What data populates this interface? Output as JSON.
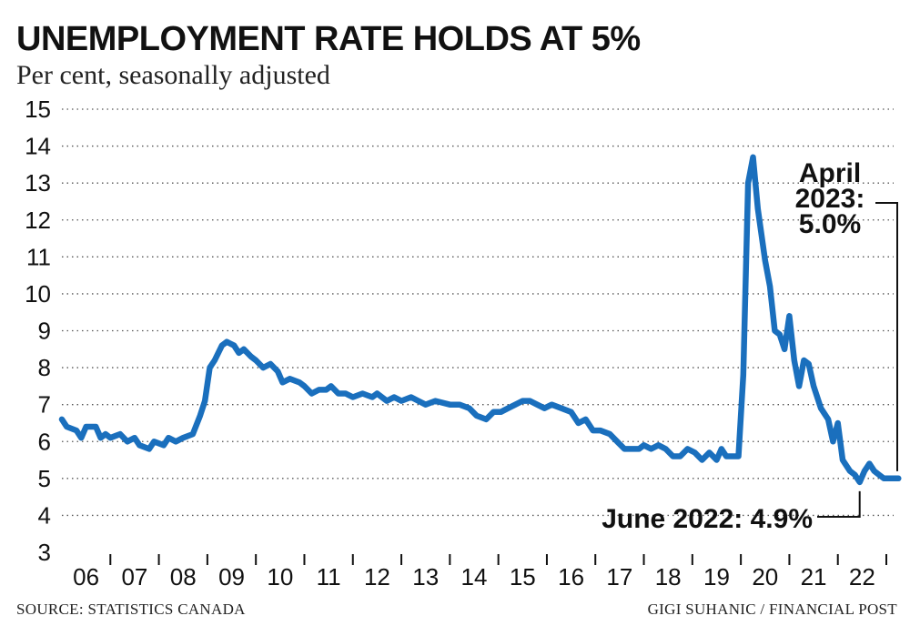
{
  "title": "UNEMPLOYMENT RATE HOLDS AT 5%",
  "subtitle": "Per cent, seasonally adjusted",
  "source_left": "SOURCE: STATISTICS CANADA",
  "source_right": "GIGI SUHANIC / FINANCIAL POST",
  "colors": {
    "line": "#1a6fbd",
    "grid": "#555555",
    "text": "#111111"
  },
  "chart_data": {
    "type": "line",
    "title": "UNEMPLOYMENT RATE HOLDS AT 5%",
    "subtitle": "Per cent, seasonally adjusted",
    "xlabel": "",
    "ylabel": "",
    "ylim": [
      3,
      15
    ],
    "xlim": [
      2006.0,
      2023.3
    ],
    "yticks": [
      3,
      4,
      5,
      6,
      7,
      8,
      9,
      10,
      11,
      12,
      13,
      14,
      15
    ],
    "xtick_labels": [
      "06",
      "07",
      "08",
      "09",
      "10",
      "11",
      "12",
      "13",
      "14",
      "15",
      "16",
      "17",
      "18",
      "19",
      "20",
      "21",
      "22"
    ],
    "grid": "horizontal dotted",
    "series": [
      {
        "name": "Unemployment rate",
        "points": [
          [
            2006.0,
            6.6
          ],
          [
            2006.1,
            6.4
          ],
          [
            2006.3,
            6.3
          ],
          [
            2006.4,
            6.1
          ],
          [
            2006.5,
            6.4
          ],
          [
            2006.7,
            6.4
          ],
          [
            2006.8,
            6.1
          ],
          [
            2006.9,
            6.2
          ],
          [
            2007.0,
            6.1
          ],
          [
            2007.2,
            6.2
          ],
          [
            2007.35,
            6.0
          ],
          [
            2007.5,
            6.1
          ],
          [
            2007.6,
            5.9
          ],
          [
            2007.8,
            5.8
          ],
          [
            2007.9,
            6.0
          ],
          [
            2008.1,
            5.9
          ],
          [
            2008.2,
            6.1
          ],
          [
            2008.35,
            6.0
          ],
          [
            2008.5,
            6.1
          ],
          [
            2008.7,
            6.2
          ],
          [
            2008.85,
            6.7
          ],
          [
            2008.95,
            7.1
          ],
          [
            2009.05,
            8.0
          ],
          [
            2009.15,
            8.2
          ],
          [
            2009.3,
            8.6
          ],
          [
            2009.4,
            8.7
          ],
          [
            2009.55,
            8.6
          ],
          [
            2009.65,
            8.4
          ],
          [
            2009.75,
            8.5
          ],
          [
            2009.9,
            8.3
          ],
          [
            2010.0,
            8.2
          ],
          [
            2010.15,
            8.0
          ],
          [
            2010.3,
            8.1
          ],
          [
            2010.45,
            7.9
          ],
          [
            2010.55,
            7.6
          ],
          [
            2010.7,
            7.7
          ],
          [
            2010.9,
            7.6
          ],
          [
            2011.0,
            7.5
          ],
          [
            2011.15,
            7.3
          ],
          [
            2011.3,
            7.4
          ],
          [
            2011.45,
            7.4
          ],
          [
            2011.55,
            7.5
          ],
          [
            2011.7,
            7.3
          ],
          [
            2011.85,
            7.3
          ],
          [
            2012.0,
            7.2
          ],
          [
            2012.2,
            7.3
          ],
          [
            2012.4,
            7.2
          ],
          [
            2012.5,
            7.3
          ],
          [
            2012.7,
            7.1
          ],
          [
            2012.85,
            7.2
          ],
          [
            2013.0,
            7.1
          ],
          [
            2013.2,
            7.2
          ],
          [
            2013.35,
            7.1
          ],
          [
            2013.5,
            7.0
          ],
          [
            2013.7,
            7.1
          ],
          [
            2014.0,
            7.0
          ],
          [
            2014.2,
            7.0
          ],
          [
            2014.4,
            6.9
          ],
          [
            2014.55,
            6.7
          ],
          [
            2014.75,
            6.6
          ],
          [
            2014.9,
            6.8
          ],
          [
            2015.05,
            6.8
          ],
          [
            2015.2,
            6.9
          ],
          [
            2015.35,
            7.0
          ],
          [
            2015.5,
            7.1
          ],
          [
            2015.65,
            7.1
          ],
          [
            2015.8,
            7.0
          ],
          [
            2015.95,
            6.9
          ],
          [
            2016.1,
            7.0
          ],
          [
            2016.3,
            6.9
          ],
          [
            2016.5,
            6.8
          ],
          [
            2016.65,
            6.5
          ],
          [
            2016.8,
            6.6
          ],
          [
            2016.95,
            6.3
          ],
          [
            2017.1,
            6.3
          ],
          [
            2017.3,
            6.2
          ],
          [
            2017.45,
            6.0
          ],
          [
            2017.6,
            5.8
          ],
          [
            2017.75,
            5.8
          ],
          [
            2017.9,
            5.8
          ],
          [
            2018.0,
            5.9
          ],
          [
            2018.15,
            5.8
          ],
          [
            2018.3,
            5.9
          ],
          [
            2018.45,
            5.8
          ],
          [
            2018.6,
            5.6
          ],
          [
            2018.75,
            5.6
          ],
          [
            2018.9,
            5.8
          ],
          [
            2019.05,
            5.7
          ],
          [
            2019.2,
            5.5
          ],
          [
            2019.35,
            5.7
          ],
          [
            2019.5,
            5.5
          ],
          [
            2019.6,
            5.8
          ],
          [
            2019.7,
            5.6
          ],
          [
            2019.8,
            5.6
          ],
          [
            2019.95,
            5.6
          ],
          [
            2020.05,
            7.8
          ],
          [
            2020.15,
            13.0
          ],
          [
            2020.25,
            13.7
          ],
          [
            2020.35,
            12.3
          ],
          [
            2020.5,
            10.9
          ],
          [
            2020.6,
            10.2
          ],
          [
            2020.7,
            9.0
          ],
          [
            2020.8,
            8.9
          ],
          [
            2020.9,
            8.5
          ],
          [
            2021.0,
            9.4
          ],
          [
            2021.1,
            8.2
          ],
          [
            2021.2,
            7.5
          ],
          [
            2021.3,
            8.2
          ],
          [
            2021.4,
            8.1
          ],
          [
            2021.5,
            7.5
          ],
          [
            2021.65,
            6.9
          ],
          [
            2021.8,
            6.6
          ],
          [
            2021.9,
            6.0
          ],
          [
            2022.0,
            6.5
          ],
          [
            2022.1,
            5.5
          ],
          [
            2022.25,
            5.2
          ],
          [
            2022.35,
            5.1
          ],
          [
            2022.45,
            4.9
          ],
          [
            2022.55,
            5.2
          ],
          [
            2022.65,
            5.4
          ],
          [
            2022.75,
            5.2
          ],
          [
            2022.85,
            5.1
          ],
          [
            2022.95,
            5.0
          ],
          [
            2023.1,
            5.0
          ],
          [
            2023.25,
            5.0
          ]
        ]
      }
    ],
    "annotations": [
      {
        "id": "april",
        "lines": [
          "April",
          "2023:",
          "5.0%"
        ],
        "x": 2023.25,
        "y": 5.0
      },
      {
        "id": "june",
        "text": "June 2022: 4.9%",
        "x": 2022.45,
        "y": 4.9
      }
    ]
  }
}
